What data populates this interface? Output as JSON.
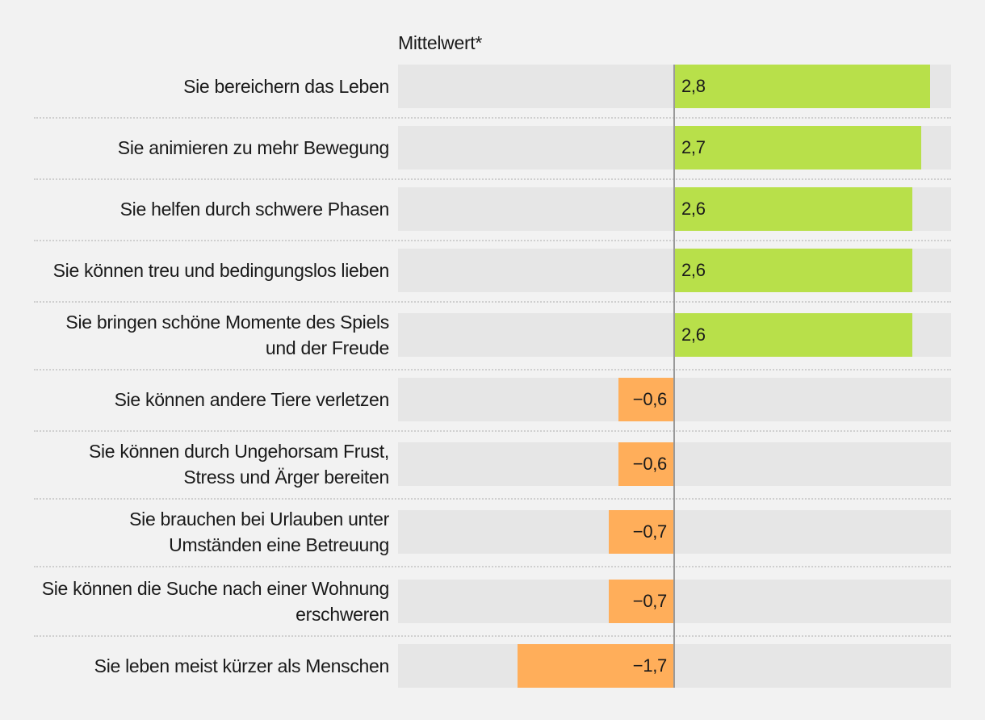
{
  "header": {
    "title": "Mittelwert*"
  },
  "colors": {
    "positive": "#b8e04a",
    "negative": "#ffae5a",
    "track": "#e6e6e6"
  },
  "chart_data": {
    "type": "bar",
    "orientation": "horizontal",
    "title": "Mittelwert*",
    "categories": [
      [
        "Sie bereichern das Leben"
      ],
      [
        "Sie animieren zu mehr Bewegung"
      ],
      [
        "Sie helfen durch schwere Phasen"
      ],
      [
        "Sie können treu und bedingungslos lieben"
      ],
      [
        "Sie bringen schöne Momente des Spiels",
        "und der Freude"
      ],
      [
        "Sie können andere Tiere verletzen"
      ],
      [
        "Sie können durch Ungehorsam Frust,",
        "Stress und Ärger bereiten"
      ],
      [
        "Sie brauchen bei Urlauben unter",
        "Umständen eine Betreuung"
      ],
      [
        "Sie können die Suche nach einer Wohnung",
        "erschweren"
      ],
      [
        "Sie leben meist kürzer als Menschen"
      ]
    ],
    "values": [
      2.8,
      2.7,
      2.6,
      2.6,
      2.6,
      -0.6,
      -0.6,
      -0.7,
      -0.7,
      -1.7
    ],
    "value_labels": [
      "2,8",
      "2,7",
      "2,6",
      "2,6",
      "2,6",
      "−0,6",
      "−0,6",
      "−0,7",
      "−0,7",
      "−1,7"
    ],
    "xlim": [
      -3,
      3
    ]
  }
}
